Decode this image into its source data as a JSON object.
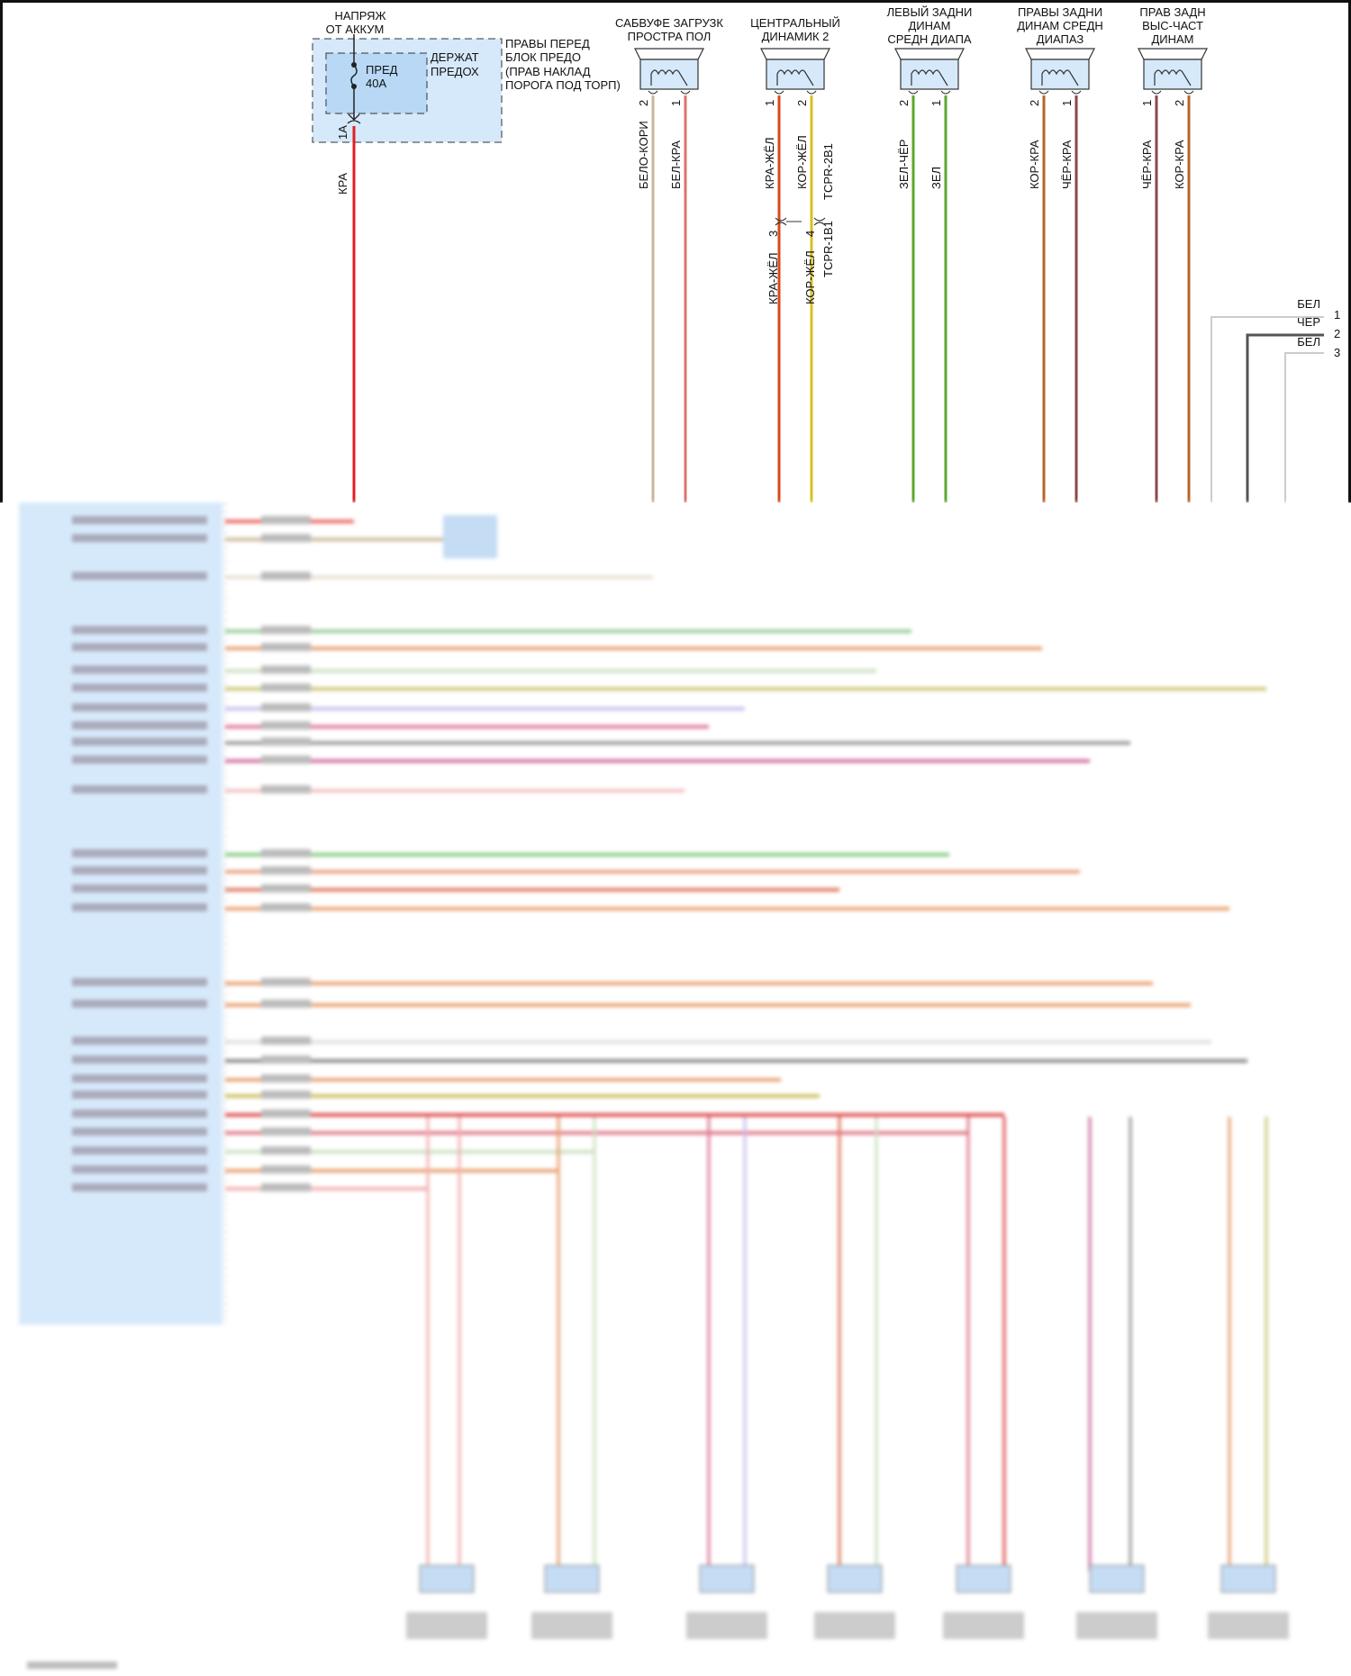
{
  "battery_supply": {
    "line1": "НАПРЯЖ",
    "line2": "ОТ АККУМ"
  },
  "fuse_block": {
    "lines": [
      "ПРАВЫ ПЕРЕД",
      "БЛОК ПРЕДО",
      "(ПРАВ НАКЛАД",
      "ПОРОГА ПОД ТОРП)"
    ],
    "holder": [
      "ДЕРЖАТ",
      "ПРЕДОХ"
    ],
    "fuse": [
      "ПРЕД",
      "40А"
    ],
    "pin": "1А",
    "wire_color": "КРА"
  },
  "speakers": [
    {
      "title": [
        "САБВУФЕ ЗАГРУЗК",
        "ПРОСТРА ПОЛ"
      ],
      "pins": [
        {
          "num": "2",
          "wire": "БЕЛО-КОРИ",
          "color": "#c8b89a"
        },
        {
          "num": "1",
          "wire": "БЕЛ-КРА",
          "color": "#e07070"
        }
      ]
    },
    {
      "title": [
        "ЦЕНТРАЛЬНЫЙ",
        "ДИНАМИК 2"
      ],
      "pins": [
        {
          "num": "1",
          "wire": "КРА-ЖЁЛ",
          "color": "#d84a1a"
        },
        {
          "num": "2",
          "wire": "КОР-ЖЁЛ",
          "color": "#d8c020"
        }
      ]
    },
    {
      "title": [
        "ЛЕВЫЙ ЗАДНИ",
        "ДИНАМ",
        "СРЕДН ДИАПА"
      ],
      "pins": [
        {
          "num": "2",
          "wire": "ЗЕЛ-ЧЁР",
          "color": "#5aa830"
        },
        {
          "num": "1",
          "wire": "ЗЕЛ",
          "color": "#5aa830"
        }
      ]
    },
    {
      "title": [
        "ПРАВЫ ЗАДНИ",
        "ДИНАМ СРЕДН",
        "ДИАПАЗ"
      ],
      "pins": [
        {
          "num": "2",
          "wire": "КОР-КРА",
          "color": "#b8642a"
        },
        {
          "num": "1",
          "wire": "ЧЁР-КРА",
          "color": "#8a4a4a"
        }
      ]
    },
    {
      "title": [
        "ПРАВ ЗАДН",
        "ВЫС-ЧАСТ",
        "ДИНАМ"
      ],
      "pins": [
        {
          "num": "1",
          "wire": "ЧЁР-КРА",
          "color": "#8a4a4a"
        },
        {
          "num": "2",
          "wire": "КОР-КРА",
          "color": "#b8642a"
        }
      ]
    }
  ],
  "center_connector": {
    "upper_id": "TCPR-2B1",
    "lower_id": "TCPR-1B1",
    "pins": [
      {
        "num": "3",
        "wire": "КРА-ЖЁЛ"
      },
      {
        "num": "4",
        "wire": "КОР-ЖЁЛ"
      }
    ]
  },
  "shielded_connector": {
    "pins": [
      {
        "num": "1",
        "wire": "БЕЛ"
      },
      {
        "num": "2",
        "wire": "ЧЁР"
      },
      {
        "num": "3",
        "wire": "БЕЛ"
      }
    ]
  },
  "colors": {
    "module_fill": "#d6e9fb",
    "fuse_fill": "#d6e9fb",
    "power_wire": "#e02020"
  }
}
